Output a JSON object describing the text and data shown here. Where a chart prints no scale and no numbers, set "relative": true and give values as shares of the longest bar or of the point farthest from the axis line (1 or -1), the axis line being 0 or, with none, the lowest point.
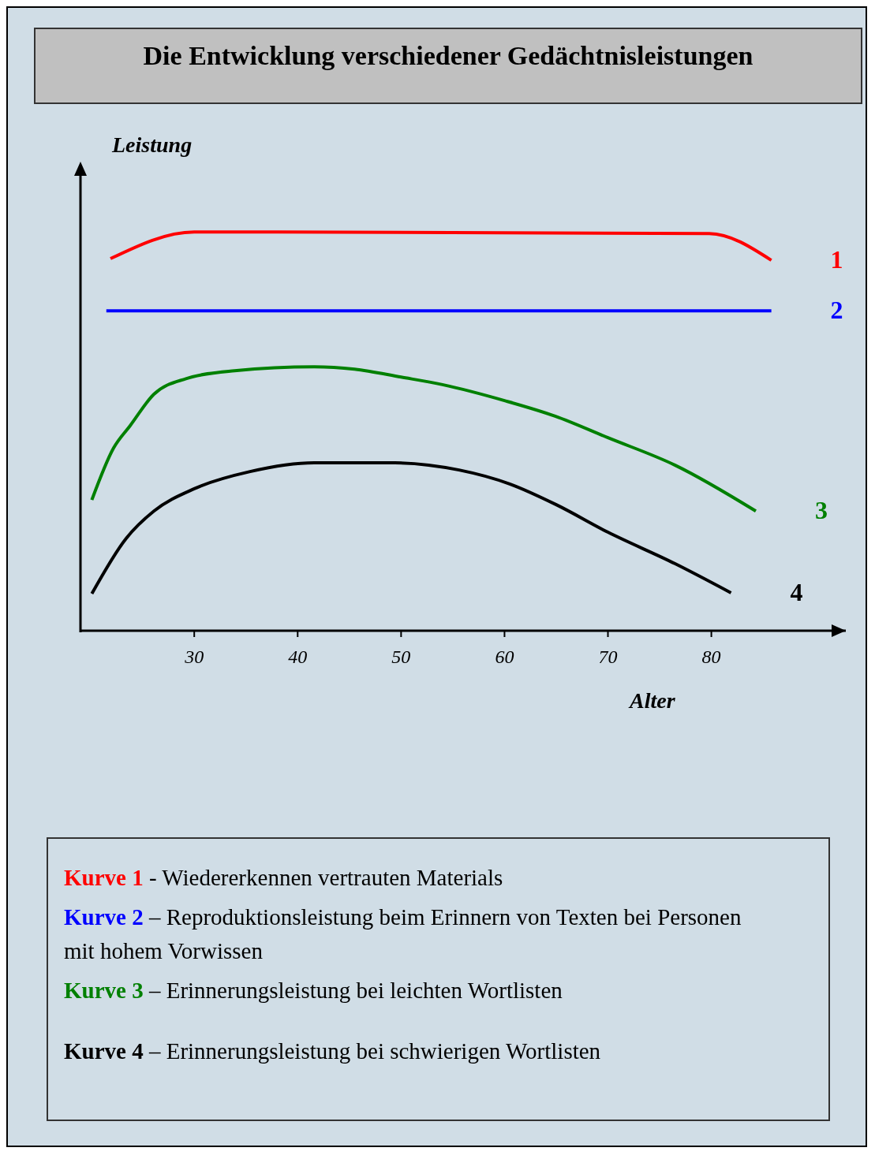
{
  "chart_data": {
    "type": "line",
    "title": "Die Entwicklung verschiedener Gedächtnisleistungen",
    "xlabel": "Alter",
    "ylabel": "Leistung",
    "relative": true,
    "xlim": [
      19,
      93
    ],
    "xticks": [
      30,
      40,
      50,
      60,
      70,
      80
    ],
    "grid": false,
    "legend": false,
    "marker": "none",
    "line_style": "solid",
    "series": [
      {
        "name": "1",
        "color": "#ff0000",
        "x": [
          21.9,
          30,
          79.8,
          85.8
        ],
        "values": [
          0.933,
          1,
          0.996,
          0.929
        ]
      },
      {
        "name": "2",
        "color": "#0000ff",
        "x": [
          21.5,
          85.8
        ],
        "values": [
          0.802,
          0.802
        ]
      },
      {
        "name": "3",
        "color": "#008000",
        "x": [
          20.1,
          22.2,
          23.8,
          26.1,
          29.2,
          33.9,
          41.6,
          45.5,
          50,
          54,
          60,
          64.9,
          70,
          76.5,
          84.3
        ],
        "values": [
          0.328,
          0.458,
          0.514,
          0.593,
          0.632,
          0.652,
          0.662,
          0.656,
          0.636,
          0.617,
          0.577,
          0.538,
          0.484,
          0.415,
          0.3
        ]
      },
      {
        "name": "4",
        "color": "#000000",
        "x": [
          20.1,
          23.4,
          26.1,
          30,
          35.4,
          41.6,
          49.4,
          55.6,
          60.5,
          65,
          70,
          76.5,
          81.9
        ],
        "values": [
          0.093,
          0.231,
          0.3,
          0.356,
          0.399,
          0.421,
          0.421,
          0.403,
          0.368,
          0.316,
          0.247,
          0.168,
          0.095
        ]
      }
    ],
    "annotations": [
      "Kurve 1 - Wiedererkennen vertrauten Materials",
      "Kurve 2 – Reproduktionsleistung beim Erinnern von Texten bei Personen mit hohem Vorwissen",
      "Kurve 3 – Erinnerungsleistung bei leichten Wortlisten",
      "Kurve 4 – Erinnerungsleistung bei schwierigen Wortlisten"
    ]
  }
}
